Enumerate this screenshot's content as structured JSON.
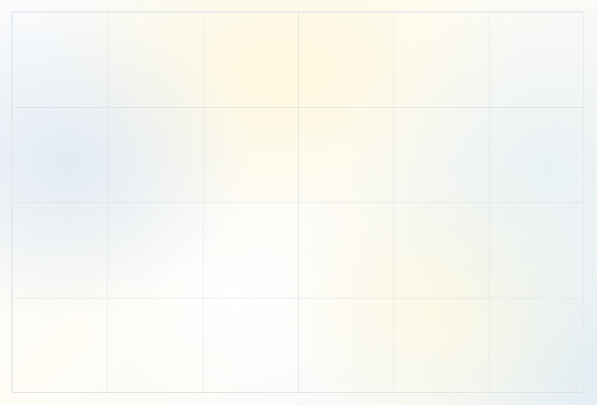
{
  "grid": {
    "columns": 6,
    "rows": 4
  },
  "colors": {
    "grid_line": "#d2d8de",
    "background": "#ffffff",
    "accent_blue": "#cddcf0",
    "accent_yellow": "#fff6d6",
    "accent_teal": "#e1ecf0"
  }
}
